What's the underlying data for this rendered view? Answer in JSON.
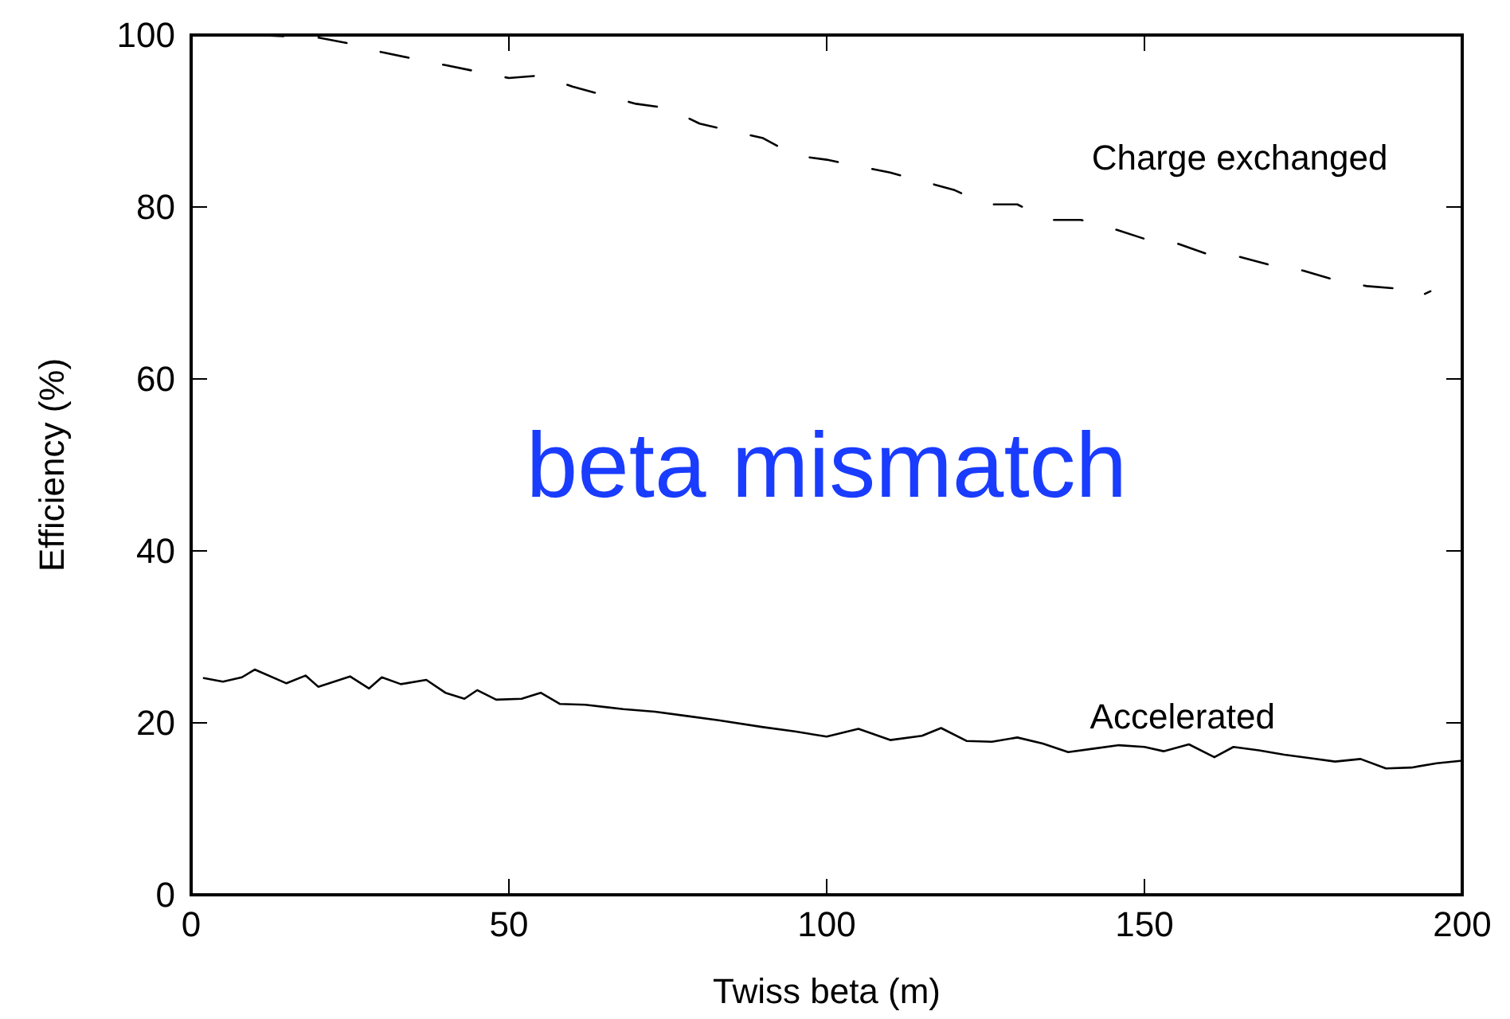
{
  "chart_data": {
    "type": "line",
    "xlabel": "Twiss beta (m)",
    "ylabel": "Efficiency (%)",
    "xlim": [
      0,
      200
    ],
    "ylim": [
      0,
      100
    ],
    "xticks": [
      0,
      50,
      100,
      150,
      200
    ],
    "yticks": [
      0,
      20,
      40,
      60,
      80,
      100
    ],
    "grid": false,
    "legend": false,
    "marker": "none",
    "annotations": [
      "beta mismatch"
    ],
    "series": [
      {
        "name": "Charge exchanged",
        "color": "#000000",
        "line_style": "dashed",
        "x": [
          0,
          10,
          20,
          25,
          30,
          40,
          50,
          55,
          60,
          70,
          75,
          80,
          90,
          95,
          100,
          110,
          120,
          125,
          130,
          135,
          140,
          145,
          150,
          155,
          160,
          165,
          170,
          175,
          180,
          185,
          190,
          193,
          195
        ],
        "values": [
          100,
          100,
          99.7,
          99,
          98,
          96.5,
          95,
          95.3,
          94,
          92,
          91.5,
          89.7,
          88,
          86,
          85.5,
          84,
          82,
          80.3,
          80.3,
          78.5,
          78.5,
          77.5,
          76.3,
          75.8,
          74.5,
          74.2,
          73.2,
          72.6,
          71.5,
          70.8,
          70.5,
          69.5,
          70.2
        ]
      },
      {
        "name": "Accelerated",
        "color": "#000000",
        "line_style": "solid",
        "x": [
          2,
          5,
          8,
          10,
          15,
          18,
          20,
          25,
          28,
          30,
          33,
          37,
          40,
          43,
          45,
          48,
          52,
          55,
          58,
          62,
          68,
          73,
          78,
          83,
          90,
          95,
          100,
          105,
          110,
          115,
          118,
          122,
          126,
          130,
          134,
          138,
          142,
          146,
          150,
          153,
          157,
          161,
          164,
          168,
          172,
          176,
          180,
          184,
          188,
          192,
          196,
          200
        ],
        "values": [
          25.2,
          24.8,
          25.3,
          26.2,
          24.6,
          25.5,
          24.2,
          25.4,
          24,
          25.3,
          24.5,
          25,
          23.5,
          22.8,
          23.8,
          22.7,
          22.8,
          23.5,
          22.2,
          22.1,
          21.6,
          21.3,
          20.8,
          20.3,
          19.5,
          19,
          18.4,
          19.3,
          18,
          18.5,
          19.4,
          17.9,
          17.8,
          18.3,
          17.6,
          16.6,
          17,
          17.4,
          17.2,
          16.7,
          17.5,
          16,
          17.2,
          16.8,
          16.3,
          15.9,
          15.5,
          15.8,
          14.7,
          14.8,
          15.3,
          15.6
        ]
      }
    ]
  }
}
